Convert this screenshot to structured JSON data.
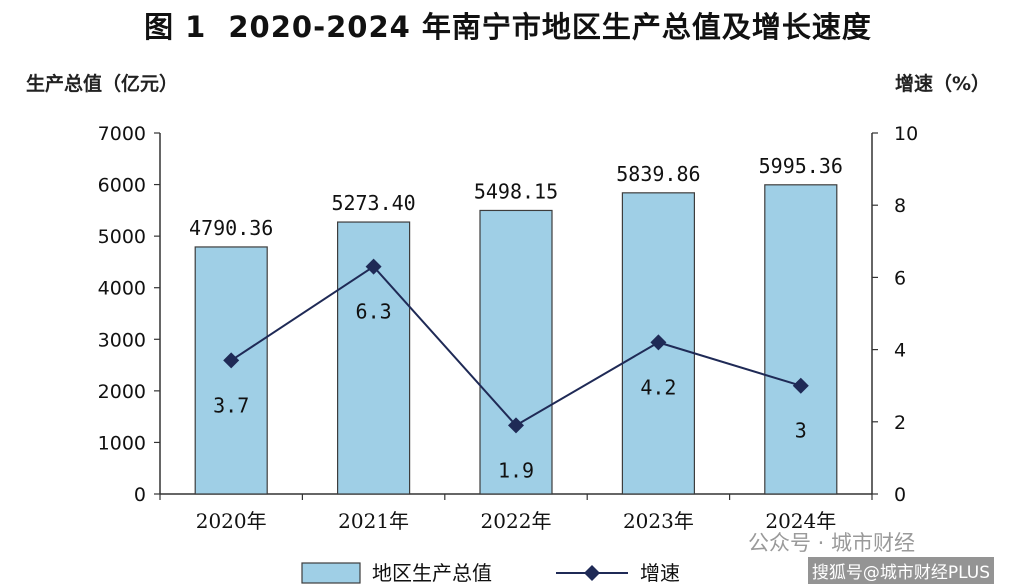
{
  "title": {
    "figure_no": "图 1",
    "text": "2020-2024 年南宁市地区生产总值及增长速度"
  },
  "colors": {
    "bar_fill": "#9fcfe6",
    "bar_stroke": "#3d3d3d",
    "line": "#1f2a56",
    "axis": "#333333"
  },
  "watermarks": [
    "公众号 · 城市财经",
    "搜狐号@城市财经PLUS"
  ],
  "chart_data": {
    "type": "bar",
    "categories": [
      "2020年",
      "2021年",
      "2022年",
      "2023年",
      "2024年"
    ],
    "y_left_label": "生产总值（亿元）",
    "y_right_label": "增速（%）",
    "y_left_lim": [
      0,
      7000
    ],
    "y_left_ticks": [
      0,
      1000,
      2000,
      3000,
      4000,
      5000,
      6000,
      7000
    ],
    "y_right_lim": [
      0,
      10
    ],
    "y_right_ticks": [
      0,
      2,
      4,
      6,
      8,
      10
    ],
    "grid": false,
    "legend_position": "bottom",
    "series": [
      {
        "name": "地区生产总值",
        "type": "bar",
        "axis": "left",
        "values": [
          4790.36,
          5273.4,
          5498.15,
          5839.86,
          5995.36
        ],
        "labels": [
          "4790.36",
          "5273.40",
          "5498.15",
          "5839.86",
          "5995.36"
        ]
      },
      {
        "name": "增速",
        "type": "line",
        "axis": "right",
        "marker": "diamond",
        "values": [
          3.7,
          6.3,
          1.9,
          4.2,
          3
        ],
        "labels": [
          "3.7",
          "6.3",
          "1.9",
          "4.2",
          "3"
        ]
      }
    ]
  }
}
